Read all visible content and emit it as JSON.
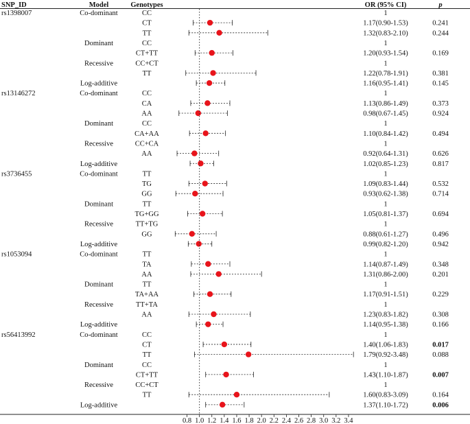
{
  "headers": {
    "snp": "SNP_ID",
    "model": "Model",
    "genotypes": "Genotypes",
    "or": "OR (95% CI)",
    "p": "p"
  },
  "chart_data": {
    "type": "forest",
    "reference_line": 1.0,
    "xlim": [
      0.75,
      3.5
    ],
    "xticks": [
      "0.8",
      "1.0",
      "1.2",
      "1.4",
      "1.6",
      "1.8",
      "2.0",
      "2.2",
      "2.4",
      "2.6",
      "2.8",
      "3.0",
      "3.2",
      "3.4"
    ],
    "marker_color": "#e8141b",
    "rows": [
      {
        "snp": "rs1398007",
        "model": "Co-dominant",
        "geno": "CC",
        "or_text": "1",
        "p": ""
      },
      {
        "geno": "CT",
        "or": 1.17,
        "lo": 0.9,
        "hi": 1.53,
        "or_text": "1.17(0.90-1.53)",
        "p": "0.241"
      },
      {
        "geno": "TT",
        "or": 1.32,
        "lo": 0.83,
        "hi": 2.1,
        "or_text": "1.32(0.83-2.10)",
        "p": "0.244"
      },
      {
        "model": "Dominant",
        "geno": "CC",
        "or_text": "1",
        "p": ""
      },
      {
        "geno": "CT+TT",
        "or": 1.2,
        "lo": 0.93,
        "hi": 1.54,
        "or_text": "1.20(0.93-1.54)",
        "p": "0.169"
      },
      {
        "model": "Recessive",
        "geno": "CC+CT",
        "or_text": "1",
        "p": ""
      },
      {
        "geno": "TT",
        "or": 1.22,
        "lo": 0.78,
        "hi": 1.91,
        "or_text": "1.22(0.78-1.91)",
        "p": "0.381"
      },
      {
        "model": "Log-additive",
        "or": 1.16,
        "lo": 0.95,
        "hi": 1.41,
        "or_text": "1.16(0.95-1.41)",
        "p": "0.145"
      },
      {
        "snp": "rs13146272",
        "model": "Co-dominant",
        "geno": "CC",
        "or_text": "1",
        "p": ""
      },
      {
        "geno": "CA",
        "or": 1.13,
        "lo": 0.86,
        "hi": 1.49,
        "or_text": "1.13(0.86-1.49)",
        "p": "0.373"
      },
      {
        "geno": "AA",
        "or": 0.98,
        "lo": 0.67,
        "hi": 1.45,
        "or_text": "0.98(0.67-1.45)",
        "p": "0.924"
      },
      {
        "model": "Dominant",
        "geno": "CC",
        "or_text": "1",
        "p": ""
      },
      {
        "geno": "CA+AA",
        "or": 1.1,
        "lo": 0.84,
        "hi": 1.42,
        "or_text": "1.10(0.84-1.42)",
        "p": "0.494"
      },
      {
        "model": "Recessive",
        "geno": "CC+CA",
        "or_text": "1",
        "p": ""
      },
      {
        "geno": "AA",
        "or": 0.92,
        "lo": 0.64,
        "hi": 1.31,
        "or_text": "0.92(0.64-1.31)",
        "p": "0.626"
      },
      {
        "model": "Log-additive",
        "or": 1.02,
        "lo": 0.85,
        "hi": 1.23,
        "or_text": "1.02(0.85-1.23)",
        "p": "0.817"
      },
      {
        "snp": "rs3736455",
        "model": "Co-dominant",
        "geno": "TT",
        "or_text": "1",
        "p": ""
      },
      {
        "geno": "TG",
        "or": 1.09,
        "lo": 0.83,
        "hi": 1.44,
        "or_text": "1.09(0.83-1.44)",
        "p": "0.532"
      },
      {
        "geno": "GG",
        "or": 0.93,
        "lo": 0.62,
        "hi": 1.38,
        "or_text": "0.93(0.62-1.38)",
        "p": "0.714"
      },
      {
        "model": "Dominant",
        "geno": "TT",
        "or_text": "1",
        "p": ""
      },
      {
        "geno": "TG+GG",
        "or": 1.05,
        "lo": 0.81,
        "hi": 1.37,
        "or_text": "1.05(0.81-1.37)",
        "p": "0.694"
      },
      {
        "model": "Recessive",
        "geno": "TT+TG",
        "or_text": "1",
        "p": ""
      },
      {
        "geno": "GG",
        "or": 0.88,
        "lo": 0.61,
        "hi": 1.27,
        "or_text": "0.88(0.61-1.27)",
        "p": "0.496"
      },
      {
        "model": "Log-additive",
        "or": 0.99,
        "lo": 0.82,
        "hi": 1.2,
        "or_text": "0.99(0.82-1.20)",
        "p": "0.942"
      },
      {
        "snp": "rs1053094",
        "model": "Co-dominant",
        "geno": "TT",
        "or_text": "1",
        "p": ""
      },
      {
        "geno": "TA",
        "or": 1.14,
        "lo": 0.87,
        "hi": 1.49,
        "or_text": "1.14(0.87-1.49)",
        "p": "0.348"
      },
      {
        "geno": "AA",
        "or": 1.31,
        "lo": 0.86,
        "hi": 2.0,
        "or_text": "1.31(0.86-2.00)",
        "p": "0.201"
      },
      {
        "model": "Dominant",
        "geno": "TT",
        "or_text": "1",
        "p": ""
      },
      {
        "geno": "TA+AA",
        "or": 1.17,
        "lo": 0.91,
        "hi": 1.51,
        "or_text": "1.17(0.91-1.51)",
        "p": "0.229"
      },
      {
        "model": "Recessive",
        "geno": "TT+TA",
        "or_text": "1",
        "p": ""
      },
      {
        "geno": "AA",
        "or": 1.23,
        "lo": 0.83,
        "hi": 1.82,
        "or_text": "1.23(0.83-1.82)",
        "p": "0.308"
      },
      {
        "model": "Log-additive",
        "or": 1.14,
        "lo": 0.95,
        "hi": 1.38,
        "or_text": "1.14(0.95-1.38)",
        "p": "0.166"
      },
      {
        "snp": "rs56413992",
        "model": "Co-dominant",
        "geno": "CC",
        "or_text": "1",
        "p": ""
      },
      {
        "geno": "CT",
        "or": 1.4,
        "lo": 1.06,
        "hi": 1.83,
        "or_text": "1.40(1.06-1.83)",
        "p": "0.017",
        "bold": true
      },
      {
        "geno": "TT",
        "or": 1.79,
        "lo": 0.92,
        "hi": 3.48,
        "or_text": "1.79(0.92-3.48)",
        "p": "0.088"
      },
      {
        "model": "Dominant",
        "geno": "CC",
        "or_text": "1",
        "p": ""
      },
      {
        "geno": "CT+TT",
        "or": 1.43,
        "lo": 1.1,
        "hi": 1.87,
        "or_text": "1.43(1.10-1.87)",
        "p": "0.007",
        "bold": true
      },
      {
        "model": "Recessive",
        "geno": "CC+CT",
        "or_text": "1",
        "p": ""
      },
      {
        "geno": "TT",
        "or": 1.6,
        "lo": 0.83,
        "hi": 3.09,
        "or_text": "1.60(0.83-3.09)",
        "p": "0.164"
      },
      {
        "model": "Log-additive",
        "or": 1.37,
        "lo": 1.1,
        "hi": 1.72,
        "or_text": "1.37(1.10-1.72)",
        "p": "0.006",
        "bold": true
      }
    ]
  }
}
